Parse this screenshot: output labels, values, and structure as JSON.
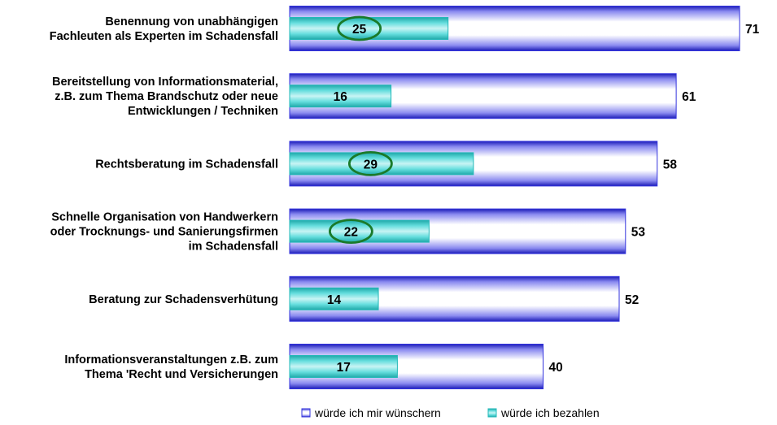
{
  "chart_data": {
    "type": "bar",
    "orientation": "horizontal",
    "categories": [
      [
        "Benennung von unabhängigen",
        "Fachleuten als Experten im Schadensfall"
      ],
      [
        "Bereitstellung von Informationsmaterial,",
        "z.B. zum Thema Brandschutz oder neue",
        "Entwicklungen / Techniken"
      ],
      [
        "Rechtsberatung im Schadensfall"
      ],
      [
        "Schnelle Organisation von Handwerkern",
        "oder Trocknungs- und Sanierungsfirmen",
        "im Schadensfall"
      ],
      [
        "Beratung zur Schadensverhütung"
      ],
      [
        "Informationsveranstaltungen z.B. zum",
        "Thema 'Recht und Versicherungen"
      ]
    ],
    "series": [
      {
        "name": "würde ich mir wünschern",
        "values": [
          71,
          61,
          58,
          53,
          52,
          40
        ],
        "color": "#3333dd"
      },
      {
        "name": "würde ich bezahlen",
        "values": [
          25,
          16,
          29,
          22,
          14,
          17
        ],
        "color": "#33cccc"
      }
    ],
    "highlighted": [
      true,
      false,
      true,
      true,
      false,
      false
    ],
    "highlight_color": "#1a7a2a",
    "xlim": [
      0,
      71
    ],
    "grid": false,
    "legend": "bottom-right",
    "title": "",
    "xlabel": "",
    "ylabel": ""
  }
}
